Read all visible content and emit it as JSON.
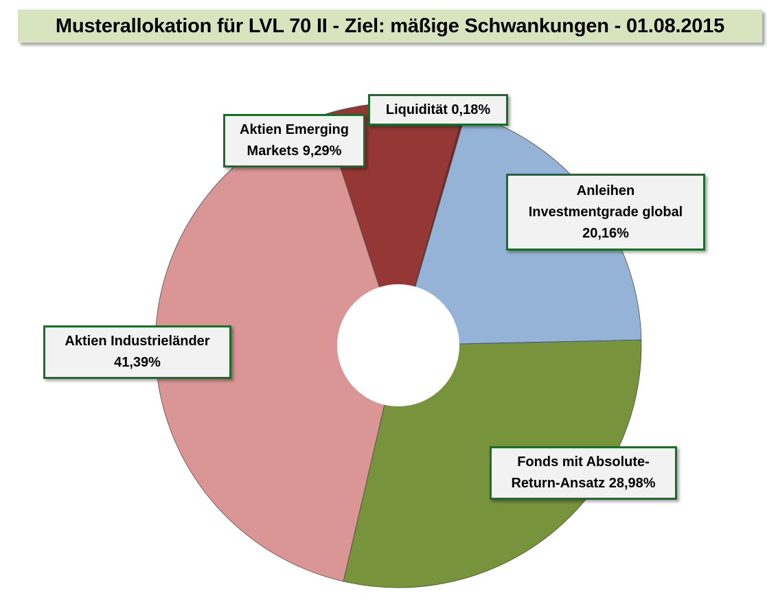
{
  "title": "Musterallokation für LVL 70 II - Ziel: mäßige Schwankungen - 01.08.2015",
  "chart_data": {
    "type": "pie",
    "title": "Musterallokation für LVL 70 II - Ziel: mäßige Schwankungen - 01.08.2015",
    "donut": true,
    "slices": [
      {
        "name": "Liquidität",
        "label": "Liquidität 0,18%",
        "value": 0.18,
        "color": "#7f2222"
      },
      {
        "name": "Anleihen Investmentgrade global",
        "label": "Anleihen Investmentgrade global 20,16%",
        "value": 20.16,
        "color": "#95b3d7"
      },
      {
        "name": "Fonds mit Absolute-Return-Ansatz",
        "label": "Fonds mit Absolute-Return-Ansatz 28,98%",
        "value": 28.98,
        "color": "#77933c"
      },
      {
        "name": "Aktien Industrieländer",
        "label": "Aktien Industrieländer 41,39%",
        "value": 41.39,
        "color": "#d99694"
      },
      {
        "name": "Aktien Emerging Markets",
        "label": "Aktien Emerging Markets 9,29%",
        "value": 9.29,
        "color": "#953735"
      }
    ]
  },
  "labels": {
    "liquiditaet": [
      "Liquidität 0,18%"
    ],
    "anleihen": [
      "Anleihen",
      "Investmentgrade global",
      "20,16%"
    ],
    "fonds": [
      "Fonds mit Absolute-",
      "Return-Ansatz 28,98%"
    ],
    "industrie": [
      "Aktien Industrieländer",
      "41,39%"
    ],
    "emerging": [
      "Aktien Emerging",
      "Markets 9,29%"
    ]
  }
}
